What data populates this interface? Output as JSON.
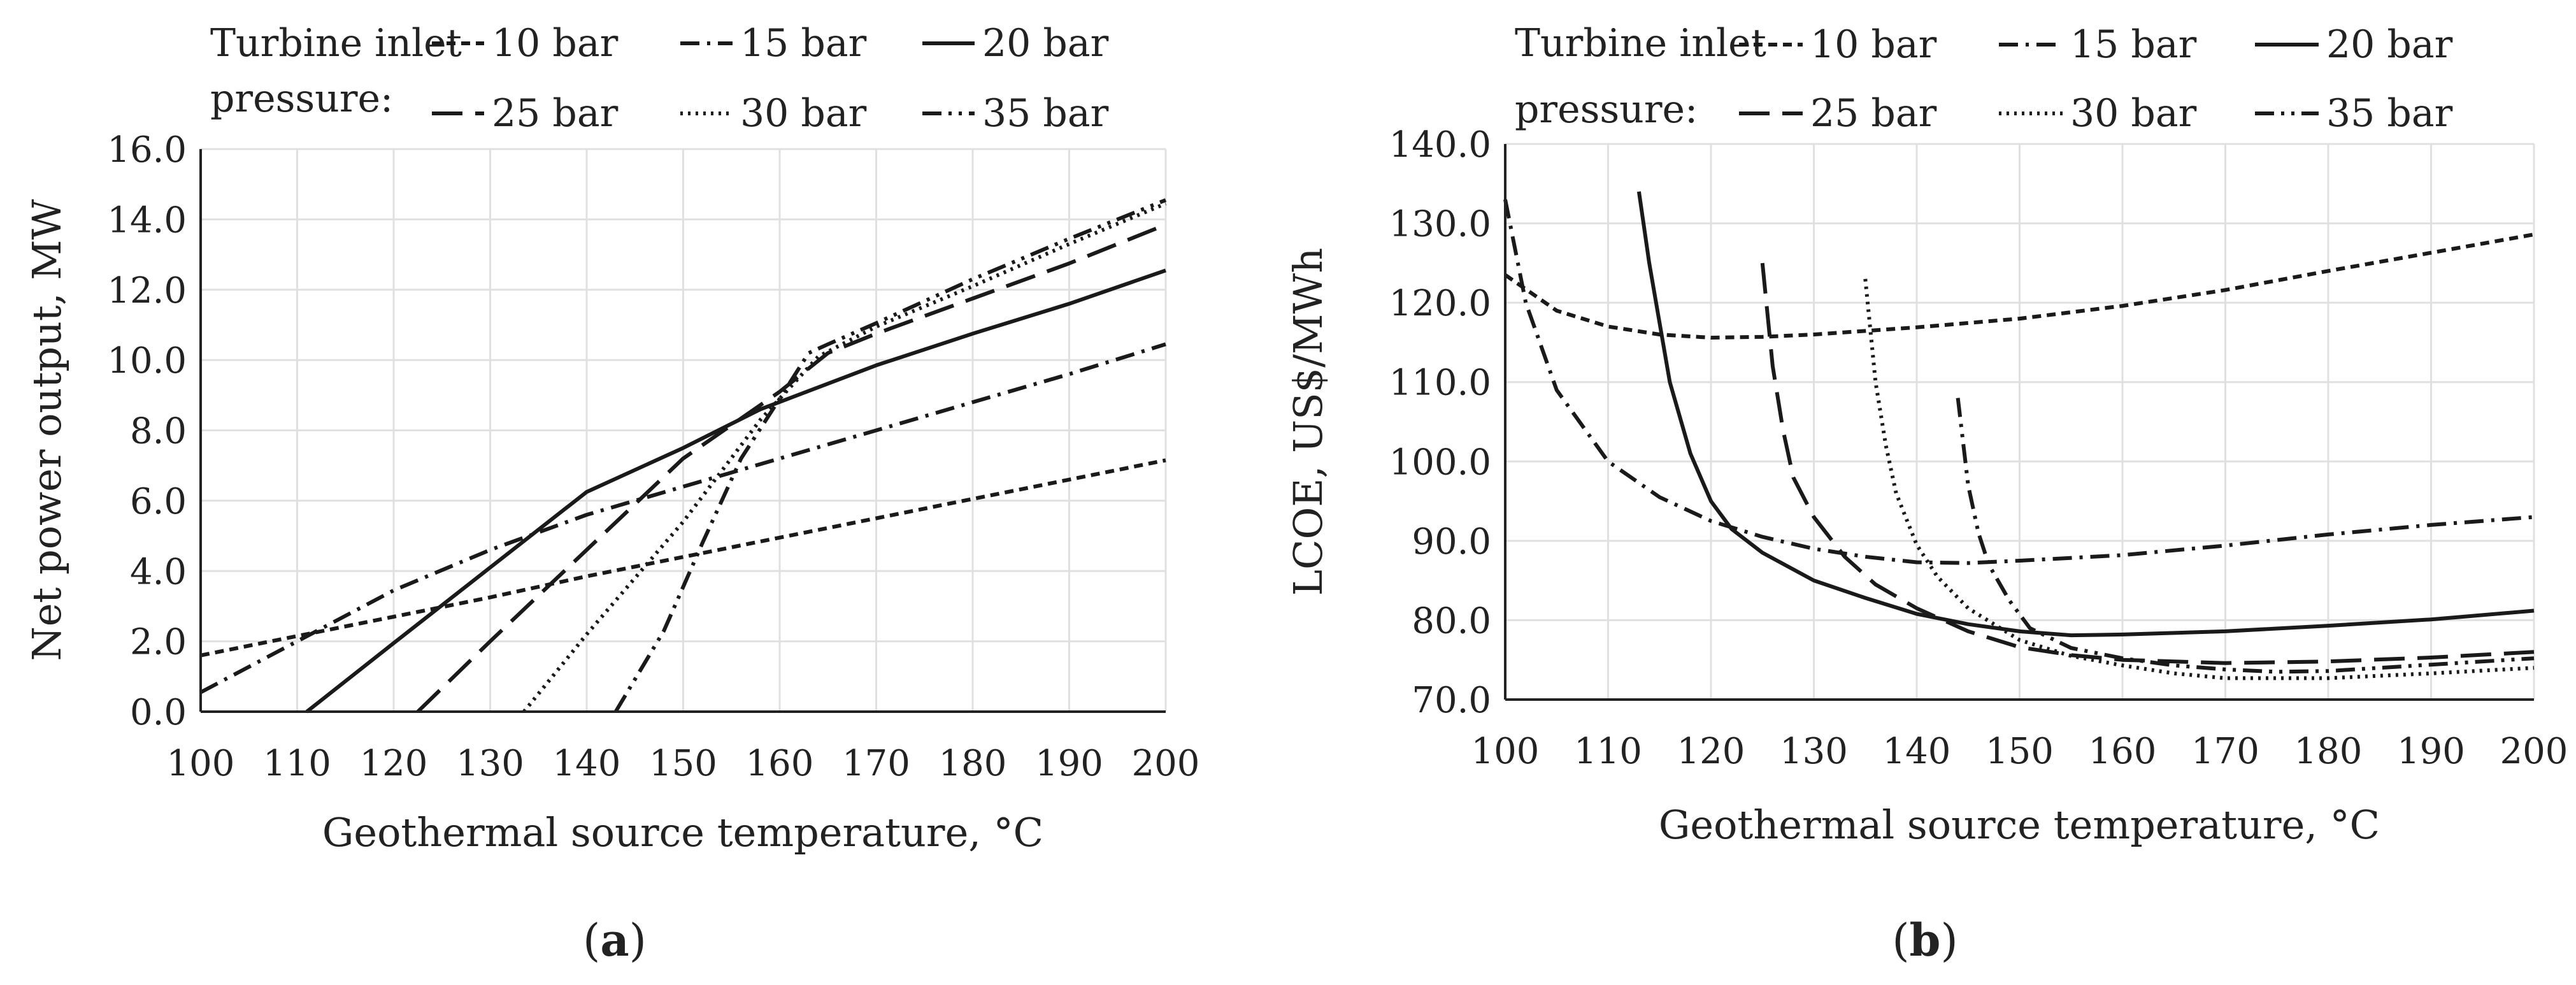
{
  "figure": {
    "background": "#ffffff",
    "ink": "#1a1a1a",
    "grid_color": "#e0e0e0"
  },
  "chart_data": [
    {
      "type": "line",
      "panel_label": "(a)",
      "caption": {
        "open": "(",
        "letter": "a",
        "close": ")"
      },
      "legend_title_lines": [
        "Turbine inlet",
        "pressure:"
      ],
      "xlabel": "Geothermal source temperature, °C",
      "ylabel": "Net power output, MW",
      "xlim": [
        100,
        200
      ],
      "ylim": [
        0,
        16
      ],
      "x_ticks": [
        "100",
        "110",
        "120",
        "130",
        "140",
        "150",
        "160",
        "170",
        "180",
        "190",
        "200"
      ],
      "y_ticks": [
        "0.0",
        "2.0",
        "4.0",
        "6.0",
        "8.0",
        "10.0",
        "12.0",
        "14.0",
        "16.0"
      ],
      "grid": true,
      "series": [
        {
          "name": "10 bar",
          "dash": "short-dash",
          "points": [
            [
              100,
              1.6
            ],
            [
              110,
              2.15
            ],
            [
              120,
              2.7
            ],
            [
              130,
              3.25
            ],
            [
              140,
              3.85
            ],
            [
              150,
              4.4
            ],
            [
              160,
              4.95
            ],
            [
              170,
              5.5
            ],
            [
              180,
              6.05
            ],
            [
              190,
              6.6
            ],
            [
              200,
              7.15
            ]
          ]
        },
        {
          "name": "15 bar",
          "dash": "dash-dot",
          "points": [
            [
              100,
              0.55
            ],
            [
              110,
              2.0
            ],
            [
              120,
              3.45
            ],
            [
              130,
              4.6
            ],
            [
              140,
              5.6
            ],
            [
              150,
              6.4
            ],
            [
              160,
              7.2
            ],
            [
              170,
              8.0
            ],
            [
              180,
              8.8
            ],
            [
              190,
              9.6
            ],
            [
              200,
              10.45
            ]
          ]
        },
        {
          "name": "20 bar",
          "dash": "solid",
          "points": [
            [
              111,
              0.0
            ],
            [
              120,
              1.95
            ],
            [
              130,
              4.1
            ],
            [
              140,
              6.25
            ],
            [
              150,
              7.5
            ],
            [
              158,
              8.6
            ],
            [
              170,
              9.85
            ],
            [
              180,
              10.75
            ],
            [
              190,
              11.6
            ],
            [
              200,
              12.55
            ]
          ]
        },
        {
          "name": "25 bar",
          "dash": "long-dash",
          "points": [
            [
              122.5,
              0.0
            ],
            [
              130,
              2.0
            ],
            [
              140,
              4.6
            ],
            [
              150,
              7.2
            ],
            [
              160,
              9.1
            ],
            [
              165,
              10.2
            ],
            [
              170,
              10.75
            ],
            [
              180,
              11.75
            ],
            [
              190,
              12.75
            ],
            [
              200,
              13.85
            ]
          ]
        },
        {
          "name": "30 bar",
          "dash": "dotted",
          "points": [
            [
              133.5,
              0.0
            ],
            [
              140,
              2.2
            ],
            [
              150,
              5.4
            ],
            [
              158,
              8.3
            ],
            [
              164,
              10.1
            ],
            [
              170,
              10.95
            ],
            [
              180,
              12.1
            ],
            [
              190,
              13.3
            ],
            [
              200,
              14.45
            ]
          ]
        },
        {
          "name": "35 bar",
          "dash": "dash-dot-dot",
          "points": [
            [
              143,
              0.0
            ],
            [
              148,
              2.3
            ],
            [
              152,
              4.8
            ],
            [
              156,
              7.2
            ],
            [
              160,
              8.9
            ],
            [
              163,
              10.2
            ],
            [
              165,
              10.45
            ],
            [
              170,
              11.05
            ],
            [
              180,
              12.3
            ],
            [
              190,
              13.45
            ],
            [
              200,
              14.55
            ]
          ]
        }
      ]
    },
    {
      "type": "line",
      "panel_label": "(b)",
      "caption": {
        "open": "(",
        "letter": "b",
        "close": ")"
      },
      "legend_title_lines": [
        "Turbine inlet",
        "pressure:"
      ],
      "xlabel": "Geothermal source temperature, °C",
      "ylabel": "LCOE, US$/MWh",
      "xlim": [
        100,
        200
      ],
      "ylim": [
        70,
        140
      ],
      "x_ticks": [
        "100",
        "110",
        "120",
        "130",
        "140",
        "150",
        "160",
        "170",
        "180",
        "190",
        "200"
      ],
      "y_ticks": [
        "70.0",
        "80.0",
        "90.0",
        "100.0",
        "110.0",
        "120.0",
        "130.0",
        "140.0"
      ],
      "grid": true,
      "series": [
        {
          "name": "10 bar",
          "dash": "short-dash",
          "points": [
            [
              100,
              123.5
            ],
            [
              105,
              119.0
            ],
            [
              110,
              117.0
            ],
            [
              115,
              116.0
            ],
            [
              120,
              115.6
            ],
            [
              125,
              115.7
            ],
            [
              130,
              116.0
            ],
            [
              140,
              116.9
            ],
            [
              150,
              118.0
            ],
            [
              160,
              119.6
            ],
            [
              170,
              121.6
            ],
            [
              180,
              124.0
            ],
            [
              190,
              126.3
            ],
            [
              200,
              128.6
            ]
          ]
        },
        {
          "name": "15 bar",
          "dash": "dash-dot",
          "points": [
            [
              100,
              133.0
            ],
            [
              102,
              120.0
            ],
            [
              105,
              109.0
            ],
            [
              110,
              100.0
            ],
            [
              115,
              95.5
            ],
            [
              120,
              92.5
            ],
            [
              125,
              90.5
            ],
            [
              130,
              89.0
            ],
            [
              135,
              88.0
            ],
            [
              140,
              87.3
            ],
            [
              145,
              87.2
            ],
            [
              150,
              87.5
            ],
            [
              160,
              88.2
            ],
            [
              170,
              89.4
            ],
            [
              180,
              90.8
            ],
            [
              190,
              92.0
            ],
            [
              200,
              93.0
            ]
          ]
        },
        {
          "name": "20 bar",
          "dash": "solid",
          "points": [
            [
              113,
              134.0
            ],
            [
              114,
              125.0
            ],
            [
              116,
              110.0
            ],
            [
              118,
              101.0
            ],
            [
              120,
              95.0
            ],
            [
              122,
              91.5
            ],
            [
              125,
              88.5
            ],
            [
              130,
              85.0
            ],
            [
              135,
              82.8
            ],
            [
              140,
              80.8
            ],
            [
              145,
              79.5
            ],
            [
              150,
              78.6
            ],
            [
              155,
              78.1
            ],
            [
              160,
              78.2
            ],
            [
              170,
              78.6
            ],
            [
              180,
              79.3
            ],
            [
              190,
              80.1
            ],
            [
              200,
              81.2
            ]
          ]
        },
        {
          "name": "25 bar",
          "dash": "long-dash",
          "points": [
            [
              125,
              125.0
            ],
            [
              126,
              112.0
            ],
            [
              127,
              104.0
            ],
            [
              128,
              98.0
            ],
            [
              130,
              93.0
            ],
            [
              133,
              88.0
            ],
            [
              136,
              84.5
            ],
            [
              140,
              81.5
            ],
            [
              145,
              78.6
            ],
            [
              150,
              76.6
            ],
            [
              155,
              75.6
            ],
            [
              160,
              75.0
            ],
            [
              170,
              74.6
            ],
            [
              180,
              74.8
            ],
            [
              190,
              75.3
            ],
            [
              200,
              76.0
            ]
          ]
        },
        {
          "name": "30 bar",
          "dash": "dotted",
          "points": [
            [
              135,
              123.0
            ],
            [
              136,
              110.0
            ],
            [
              137,
              102.0
            ],
            [
              138,
              96.0
            ],
            [
              140,
              89.5
            ],
            [
              142,
              85.5
            ],
            [
              145,
              81.5
            ],
            [
              150,
              77.5
            ],
            [
              155,
              75.5
            ],
            [
              160,
              74.3
            ],
            [
              165,
              73.3
            ],
            [
              170,
              72.7
            ],
            [
              180,
              72.7
            ],
            [
              190,
              73.3
            ],
            [
              200,
              74.0
            ]
          ]
        },
        {
          "name": "35 bar",
          "dash": "dash-dot-dot",
          "points": [
            [
              144,
              108.0
            ],
            [
              145,
              97.0
            ],
            [
              146,
              91.0
            ],
            [
              147,
              87.0
            ],
            [
              149,
              82.5
            ],
            [
              151,
              79.0
            ],
            [
              155,
              76.5
            ],
            [
              160,
              75.2
            ],
            [
              165,
              74.3
            ],
            [
              170,
              73.8
            ],
            [
              175,
              73.5
            ],
            [
              180,
              73.6
            ],
            [
              190,
              74.4
            ],
            [
              200,
              75.2
            ]
          ]
        }
      ]
    }
  ]
}
